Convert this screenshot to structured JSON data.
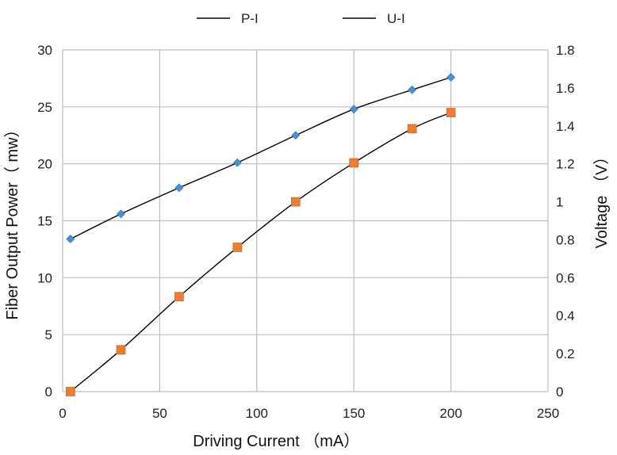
{
  "chart_data": {
    "type": "line",
    "xlabel": "Driving Current （mA）",
    "ylabel_left": "Fiber Output Power（ mw）",
    "ylabel_right": "Voltage （V）",
    "xlim": [
      0,
      250
    ],
    "xticks": [
      "0",
      "50",
      "100",
      "150",
      "200",
      "250"
    ],
    "ylim_left": [
      0,
      30
    ],
    "yticks_left": [
      "0",
      "5",
      "10",
      "15",
      "20",
      "25",
      "30"
    ],
    "ylim_right": [
      0,
      1.8
    ],
    "yticks_right": [
      "0",
      "0.2",
      "0.4",
      "0.6",
      "0.8",
      "1",
      "1.2",
      "1.4",
      "1.6",
      "1.8"
    ],
    "grid": true,
    "legend_position": "top",
    "series": [
      {
        "name": "P-I",
        "axis": "left",
        "marker": "diamond",
        "marker_color": "#4a8fd6",
        "line_color": "#000000",
        "x": [
          4,
          30,
          60,
          90,
          120,
          150,
          180,
          200
        ],
        "y": [
          13.4,
          15.6,
          17.9,
          20.1,
          22.5,
          24.8,
          26.5,
          27.6
        ]
      },
      {
        "name": "U-I",
        "axis": "right",
        "marker": "square",
        "marker_color": "#ed7d31",
        "line_color": "#000000",
        "x": [
          4,
          30,
          60,
          90,
          120,
          150,
          180,
          200
        ],
        "y": [
          0,
          0.22,
          0.5,
          0.76,
          1.0,
          1.205,
          1.385,
          1.47
        ]
      }
    ]
  }
}
